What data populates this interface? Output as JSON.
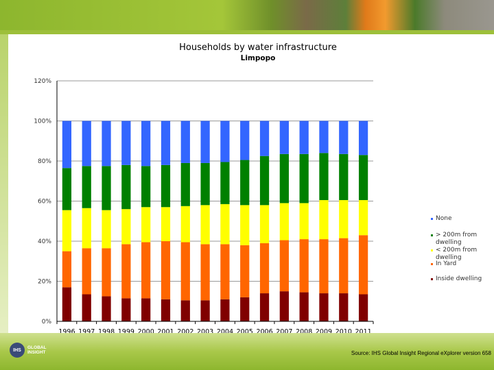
{
  "chart_data": {
    "type": "stacked-bar",
    "title": "Households by water infrastructure",
    "subtitle": "Limpopo",
    "xlabel": "",
    "ylabel": "",
    "ylim": [
      0,
      120
    ],
    "yticks": [
      "0%",
      "20%",
      "40%",
      "60%",
      "80%",
      "100%",
      "120%"
    ],
    "grid": true,
    "legend_position": "right",
    "categories": [
      "1996",
      "1997",
      "1998",
      "1999",
      "2000",
      "2001",
      "2002",
      "2003",
      "2004",
      "2005",
      "2006",
      "2007",
      "2008",
      "2009",
      "2010",
      "2011"
    ],
    "series": [
      {
        "name": "Inside dwelling",
        "color": "#800000",
        "values": [
          17,
          13.5,
          12.5,
          11.5,
          11.5,
          11,
          10.5,
          10.5,
          11,
          12,
          14,
          15,
          14.5,
          14,
          14,
          13.5
        ]
      },
      {
        "name": "In Yard",
        "color": "#ff6600",
        "values": [
          18,
          23,
          24,
          27,
          28,
          29,
          29,
          28,
          27.5,
          26,
          25,
          25.5,
          26.5,
          27,
          27.5,
          29.5
        ]
      },
      {
        "name": "< 200m from dwelling",
        "color": "#ffff00",
        "values": [
          20.5,
          20,
          19,
          17.5,
          17.5,
          17,
          18,
          19.5,
          20,
          20,
          19,
          18.5,
          18,
          19.5,
          19,
          17.5
        ]
      },
      {
        "name": "> 200m from dwelling",
        "color": "#008000",
        "values": [
          21,
          21,
          22,
          22,
          20.5,
          21,
          21.5,
          21,
          21,
          22.5,
          24.5,
          24.5,
          24.5,
          23.5,
          23,
          22.5
        ]
      },
      {
        "name": "None",
        "color": "#3366ff",
        "values": [
          23.5,
          22.5,
          22.5,
          22,
          22.5,
          22,
          21,
          21,
          20.5,
          19.5,
          17.5,
          16.5,
          16.5,
          16,
          16.5,
          17
        ]
      }
    ]
  },
  "legend_order": [
    "None",
    "> 200m from dwelling",
    "< 200m from dwelling",
    "In Yard",
    "Inside dwelling"
  ],
  "footer": {
    "logo_mark": "IHS",
    "logo_line1": "GLOBAL",
    "logo_line2": "INSIGHT",
    "source": "Source: IHS Global Insight Regional eXplorer version 658"
  }
}
